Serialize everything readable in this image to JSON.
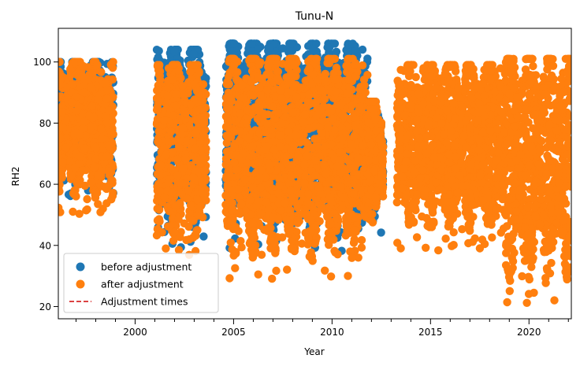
{
  "chart_data": {
    "type": "scatter",
    "title": "Tunu-N",
    "xlabel": "Year",
    "ylabel": "RH2",
    "xlim": [
      1996.1,
      2022.15
    ],
    "ylim": [
      16,
      111
    ],
    "x_ticks": [
      2000,
      2005,
      2010,
      2015,
      2020
    ],
    "y_ticks": [
      20,
      40,
      60,
      80,
      100
    ],
    "grid": false,
    "legend_position": "lower-left",
    "series": [
      {
        "name": "before adjustment",
        "marker": "circle",
        "color": "#1f77b4",
        "segments": [
          {
            "x": [
              1996.1,
              1998.9
            ],
            "y": [
              55,
              100
            ]
          },
          {
            "x": [
              2001.1,
              2003.6
            ],
            "y": [
              38,
              104
            ]
          },
          {
            "x": [
              2004.6,
              2011.8
            ],
            "y": [
              38,
              106
            ]
          },
          {
            "x": [
              2011.8,
              2012.6
            ],
            "y": [
              43,
              87
            ]
          }
        ]
      },
      {
        "name": "after adjustment",
        "marker": "circle",
        "color": "#ff7f0e",
        "segments": [
          {
            "x": [
              1996.1,
              1998.9
            ],
            "y": [
              50,
              100
            ]
          },
          {
            "x": [
              2001.1,
              2003.6
            ],
            "y": [
              34,
              99
            ]
          },
          {
            "x": [
              2004.6,
              2011.8
            ],
            "y": [
              28,
              101
            ]
          },
          {
            "x": [
              2011.8,
              2012.6
            ],
            "y": [
              42,
              87
            ]
          },
          {
            "x": [
              2013.3,
              2018.8
            ],
            "y": [
              38,
              99
            ]
          },
          {
            "x": [
              2018.8,
              2022.15
            ],
            "y": [
              20,
              101
            ]
          }
        ]
      },
      {
        "name": "Adjustment times",
        "marker": "dashed-line",
        "color": "#d62728",
        "segments": []
      }
    ]
  }
}
